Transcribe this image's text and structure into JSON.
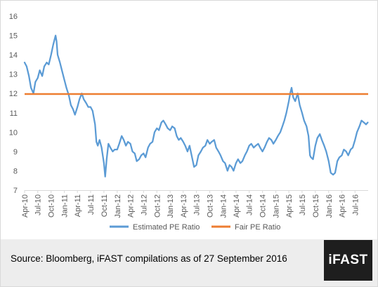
{
  "chart_data": {
    "type": "line",
    "title": "",
    "xlabel": "",
    "ylabel": "",
    "ylim": [
      7,
      16
    ],
    "y_ticks": [
      "7",
      "8",
      "9",
      "10",
      "11",
      "12",
      "13",
      "14",
      "15",
      "16"
    ],
    "x_range": [
      "2010-04",
      "2016-09"
    ],
    "x_tick_labels": [
      "Apr-10",
      "Jul-10",
      "Oct-10",
      "Jan-11",
      "Apr-11",
      "Jul-11",
      "Oct-11",
      "Jan-12",
      "Apr-12",
      "Jul-12",
      "Oct-12",
      "Jan-13",
      "Apr-13",
      "Jul-13",
      "Oct-13",
      "Jan-14",
      "Apr-14",
      "Jul-14",
      "Oct-14",
      "Jan-15",
      "Apr-15",
      "Jul-15",
      "Oct-15",
      "Jan-16",
      "Apr-16",
      "Jul-16"
    ],
    "grid": false,
    "legend_position": "bottom",
    "series": [
      {
        "name": "Estimated PE Ratio",
        "color": "#5b9bd5",
        "points": [
          [
            "2010-04-01",
            13.6
          ],
          [
            "2010-04-15",
            13.4
          ],
          [
            "2010-05-01",
            12.9
          ],
          [
            "2010-05-15",
            12.3
          ],
          [
            "2010-06-01",
            12.0
          ],
          [
            "2010-06-15",
            12.6
          ],
          [
            "2010-07-01",
            12.8
          ],
          [
            "2010-07-15",
            13.2
          ],
          [
            "2010-08-01",
            12.9
          ],
          [
            "2010-08-15",
            13.4
          ],
          [
            "2010-09-01",
            13.6
          ],
          [
            "2010-09-15",
            13.5
          ],
          [
            "2010-10-01",
            14.0
          ],
          [
            "2010-10-15",
            14.5
          ],
          [
            "2010-11-01",
            15.0
          ],
          [
            "2010-11-08",
            14.7
          ],
          [
            "2010-11-15",
            14.0
          ],
          [
            "2010-12-01",
            13.6
          ],
          [
            "2010-12-15",
            13.2
          ],
          [
            "2011-01-01",
            12.7
          ],
          [
            "2011-01-15",
            12.3
          ],
          [
            "2011-02-01",
            11.9
          ],
          [
            "2011-02-15",
            11.4
          ],
          [
            "2011-03-01",
            11.2
          ],
          [
            "2011-03-15",
            10.9
          ],
          [
            "2011-04-01",
            11.3
          ],
          [
            "2011-04-15",
            11.7
          ],
          [
            "2011-05-01",
            12.0
          ],
          [
            "2011-05-15",
            11.7
          ],
          [
            "2011-06-01",
            11.5
          ],
          [
            "2011-06-15",
            11.3
          ],
          [
            "2011-07-01",
            11.3
          ],
          [
            "2011-07-15",
            11.1
          ],
          [
            "2011-08-01",
            10.4
          ],
          [
            "2011-08-10",
            9.5
          ],
          [
            "2011-08-20",
            9.3
          ],
          [
            "2011-09-01",
            9.6
          ],
          [
            "2011-09-15",
            9.2
          ],
          [
            "2011-10-01",
            8.4
          ],
          [
            "2011-10-10",
            7.7
          ],
          [
            "2011-10-20",
            8.6
          ],
          [
            "2011-11-01",
            9.4
          ],
          [
            "2011-11-15",
            9.2
          ],
          [
            "2011-12-01",
            9.0
          ],
          [
            "2011-12-15",
            9.1
          ],
          [
            "2012-01-01",
            9.1
          ],
          [
            "2012-01-15",
            9.4
          ],
          [
            "2012-02-01",
            9.8
          ],
          [
            "2012-02-15",
            9.6
          ],
          [
            "2012-03-01",
            9.3
          ],
          [
            "2012-03-15",
            9.5
          ],
          [
            "2012-04-01",
            9.4
          ],
          [
            "2012-04-15",
            9.0
          ],
          [
            "2012-05-01",
            8.9
          ],
          [
            "2012-05-15",
            8.5
          ],
          [
            "2012-06-01",
            8.6
          ],
          [
            "2012-06-15",
            8.8
          ],
          [
            "2012-07-01",
            8.9
          ],
          [
            "2012-07-15",
            8.7
          ],
          [
            "2012-08-01",
            9.2
          ],
          [
            "2012-08-15",
            9.4
          ],
          [
            "2012-09-01",
            9.5
          ],
          [
            "2012-09-15",
            10.0
          ],
          [
            "2012-10-01",
            10.2
          ],
          [
            "2012-10-15",
            10.1
          ],
          [
            "2012-11-01",
            10.5
          ],
          [
            "2012-11-15",
            10.6
          ],
          [
            "2012-12-01",
            10.4
          ],
          [
            "2012-12-15",
            10.2
          ],
          [
            "2013-01-01",
            10.1
          ],
          [
            "2013-01-15",
            10.3
          ],
          [
            "2013-02-01",
            10.2
          ],
          [
            "2013-02-15",
            9.8
          ],
          [
            "2013-03-01",
            9.6
          ],
          [
            "2013-03-15",
            9.7
          ],
          [
            "2013-04-01",
            9.5
          ],
          [
            "2013-04-15",
            9.3
          ],
          [
            "2013-05-01",
            9.0
          ],
          [
            "2013-05-15",
            9.3
          ],
          [
            "2013-06-01",
            8.7
          ],
          [
            "2013-06-15",
            8.2
          ],
          [
            "2013-07-01",
            8.3
          ],
          [
            "2013-07-15",
            8.8
          ],
          [
            "2013-08-01",
            9.0
          ],
          [
            "2013-08-15",
            9.2
          ],
          [
            "2013-09-01",
            9.3
          ],
          [
            "2013-09-15",
            9.6
          ],
          [
            "2013-10-01",
            9.4
          ],
          [
            "2013-10-15",
            9.5
          ],
          [
            "2013-11-01",
            9.6
          ],
          [
            "2013-11-15",
            9.2
          ],
          [
            "2013-12-01",
            9.0
          ],
          [
            "2013-12-15",
            8.8
          ],
          [
            "2014-01-01",
            8.5
          ],
          [
            "2014-01-15",
            8.4
          ],
          [
            "2014-02-01",
            8.0
          ],
          [
            "2014-02-15",
            8.3
          ],
          [
            "2014-03-01",
            8.2
          ],
          [
            "2014-03-15",
            8.0
          ],
          [
            "2014-04-01",
            8.4
          ],
          [
            "2014-04-15",
            8.6
          ],
          [
            "2014-05-01",
            8.4
          ],
          [
            "2014-05-15",
            8.5
          ],
          [
            "2014-06-01",
            8.8
          ],
          [
            "2014-06-15",
            9.0
          ],
          [
            "2014-07-01",
            9.3
          ],
          [
            "2014-07-15",
            9.4
          ],
          [
            "2014-08-01",
            9.2
          ],
          [
            "2014-08-15",
            9.3
          ],
          [
            "2014-09-01",
            9.4
          ],
          [
            "2014-09-15",
            9.2
          ],
          [
            "2014-10-01",
            9.0
          ],
          [
            "2014-10-15",
            9.2
          ],
          [
            "2014-11-01",
            9.5
          ],
          [
            "2014-11-15",
            9.7
          ],
          [
            "2014-12-01",
            9.6
          ],
          [
            "2014-12-15",
            9.4
          ],
          [
            "2015-01-01",
            9.6
          ],
          [
            "2015-01-15",
            9.8
          ],
          [
            "2015-02-01",
            10.0
          ],
          [
            "2015-02-15",
            10.3
          ],
          [
            "2015-03-01",
            10.6
          ],
          [
            "2015-03-15",
            11.0
          ],
          [
            "2015-04-01",
            11.6
          ],
          [
            "2015-04-10",
            12.0
          ],
          [
            "2015-04-20",
            12.3
          ],
          [
            "2015-05-01",
            11.8
          ],
          [
            "2015-05-15",
            11.6
          ],
          [
            "2015-06-01",
            12.0
          ],
          [
            "2015-06-15",
            11.4
          ],
          [
            "2015-07-01",
            11.0
          ],
          [
            "2015-07-15",
            10.6
          ],
          [
            "2015-08-01",
            10.3
          ],
          [
            "2015-08-15",
            9.8
          ],
          [
            "2015-08-25",
            8.8
          ],
          [
            "2015-09-01",
            8.7
          ],
          [
            "2015-09-15",
            8.6
          ],
          [
            "2015-10-01",
            9.3
          ],
          [
            "2015-10-15",
            9.7
          ],
          [
            "2015-11-01",
            9.9
          ],
          [
            "2015-11-15",
            9.6
          ],
          [
            "2015-12-01",
            9.3
          ],
          [
            "2015-12-15",
            9.0
          ],
          [
            "2016-01-01",
            8.5
          ],
          [
            "2016-01-15",
            7.9
          ],
          [
            "2016-02-01",
            7.8
          ],
          [
            "2016-02-15",
            7.9
          ],
          [
            "2016-03-01",
            8.5
          ],
          [
            "2016-03-15",
            8.7
          ],
          [
            "2016-04-01",
            8.8
          ],
          [
            "2016-04-15",
            9.1
          ],
          [
            "2016-05-01",
            9.0
          ],
          [
            "2016-05-15",
            8.8
          ],
          [
            "2016-06-01",
            9.1
          ],
          [
            "2016-06-15",
            9.2
          ],
          [
            "2016-07-01",
            9.6
          ],
          [
            "2016-07-15",
            10.0
          ],
          [
            "2016-08-01",
            10.3
          ],
          [
            "2016-08-15",
            10.6
          ],
          [
            "2016-09-01",
            10.5
          ],
          [
            "2016-09-15",
            10.4
          ],
          [
            "2016-09-27",
            10.5
          ]
        ]
      },
      {
        "name": "Fair PE Ratio",
        "color": "#ed7d31",
        "constant_value": 11.97
      }
    ]
  },
  "footer": {
    "source_text": "Source: Bloomberg, iFAST compilations as of 27 September 2016",
    "logo_text": "iFAST",
    "background_color": "#ededed",
    "logo_background_color": "#1e1e1e"
  }
}
